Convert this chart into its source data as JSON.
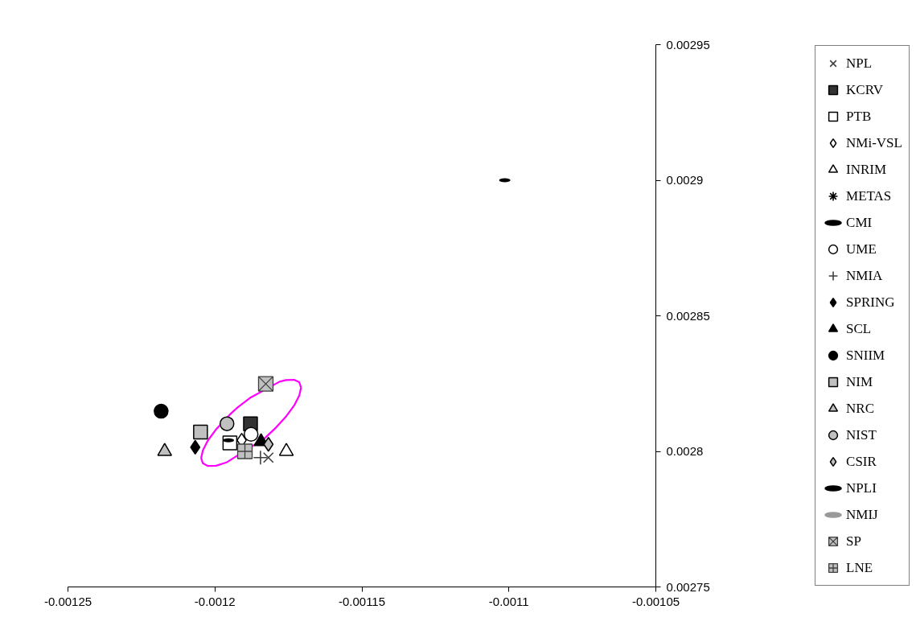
{
  "chart_data": {
    "type": "scatter",
    "xlim": [
      -0.00125,
      -0.00105
    ],
    "ylim": [
      0.00275,
      0.00295
    ],
    "xticks": [
      -0.00125,
      -0.0012,
      -0.00115,
      -0.0011,
      -0.00105
    ],
    "yticks": [
      0.00275,
      0.0028,
      0.00285,
      0.0029,
      0.00295
    ],
    "legend": "right",
    "series": [
      {
        "type": "line",
        "color": "#ff00ff",
        "x": [
          -0.0012047,
          -0.0012041,
          -0.0012024,
          -0.0011997,
          -0.0011949,
          -0.0011922,
          -0.0011878,
          -0.001178,
          -0.0011758,
          -0.0011731,
          -0.0011713,
          -0.0011707,
          null,
          -0.0012047,
          -0.0012041,
          -0.0012024,
          -0.0011996,
          -0.0011961,
          -0.0011832,
          -0.0011792,
          -0.0011757,
          -0.001173,
          -0.0011713,
          -0.0011707
        ],
        "values": [
          0.0027975,
          0.0028004,
          0.002804,
          0.002808,
          0.0028136,
          0.0028163,
          0.0028199,
          0.0028257,
          0.0028263,
          0.0028264,
          0.0028255,
          0.0028235,
          null,
          0.0027975,
          0.0027956,
          0.0027946,
          0.0027947,
          0.0027959,
          0.0028047,
          0.0028088,
          0.002813,
          0.002817,
          0.0028206,
          0.0028235
        ]
      },
      {
        "name": "NPL",
        "marker": "x",
        "x": [
          -0.0011818
        ],
        "values": [
          0.0027977
        ]
      },
      {
        "name": "KCRV",
        "color": "#333333",
        "marker": "square",
        "x": [
          -0.0011879
        ],
        "values": [
          0.0028102
        ]
      },
      {
        "name": "PTB",
        "color": "#ffffff",
        "marker": "square",
        "x": [
          -0.0011949
        ],
        "values": [
          0.0028031
        ]
      },
      {
        "name": "NMi-VSL",
        "color": "#ffffff",
        "marker": "diamond",
        "x": [
          -0.0011909
        ],
        "values": [
          0.0028041
        ]
      },
      {
        "name": "INRIM",
        "color": "#ffffff",
        "marker": "triangle",
        "x": [
          -0.0011757
        ],
        "values": [
          0.0028
        ]
      },
      {
        "name": "METAS",
        "color": "#000000",
        "marker": "star",
        "x": [
          null
        ],
        "values": [
          null
        ]
      },
      {
        "name": "CMI",
        "color": "#000000",
        "x": [
          -0.0011954
        ],
        "values": [
          0.0028041
        ]
      },
      {
        "name": "UME",
        "color": "#ffffff",
        "marker": "circle",
        "x": [
          -0.0011877
        ],
        "values": [
          0.0028063
        ]
      },
      {
        "name": "NMIA",
        "marker": "cross",
        "x": [
          -0.0011845
        ],
        "values": [
          0.0027977
        ]
      },
      {
        "name": "SPRING",
        "color": "#000000",
        "marker": "diamond",
        "x": [
          -0.0012067
        ],
        "values": [
          0.0028015
        ]
      },
      {
        "name": "SCL",
        "color": "#000000",
        "marker": "triangle",
        "x": [
          -0.0011843
        ],
        "values": [
          0.0028036
        ]
      },
      {
        "name": "SNIIM",
        "color": "#000000",
        "marker": "circle",
        "x": [
          -0.0012183
        ],
        "values": [
          0.0028148
        ]
      },
      {
        "name": "NIM",
        "color": "#c0c0c0",
        "marker": "square",
        "x": [
          -0.0012049
        ],
        "values": [
          0.0028071
        ]
      },
      {
        "name": "NRC",
        "color": "#c0c0c0",
        "marker": "triangle",
        "x": [
          -0.0012171
        ],
        "values": [
          0.0028
        ]
      },
      {
        "name": "NIST",
        "color": "#c0c0c0",
        "marker": "circle",
        "x": [
          -0.0011959
        ],
        "values": [
          0.0028102
        ]
      },
      {
        "name": "CSIR",
        "color": "#c0c0c0",
        "marker": "diamond",
        "x": [
          -0.0011818
        ],
        "values": [
          0.0028026
        ]
      },
      {
        "name": "NPLI",
        "color": "#000000",
        "x": [
          -0.0011014
        ],
        "values": [
          0.0029
        ]
      },
      {
        "name": "NMIJ",
        "color": "#999999",
        "x": [
          null
        ],
        "values": [
          null
        ]
      },
      {
        "name": "SP",
        "color": "#c0c0c0",
        "marker": "x",
        "x": [
          -0.0011827
        ],
        "values": [
          0.0028249
        ]
      },
      {
        "name": "LNE",
        "color": "#c0c0c0",
        "marker": "cross",
        "x": [
          -0.0011898
        ],
        "values": [
          0.0028
        ]
      }
    ]
  }
}
